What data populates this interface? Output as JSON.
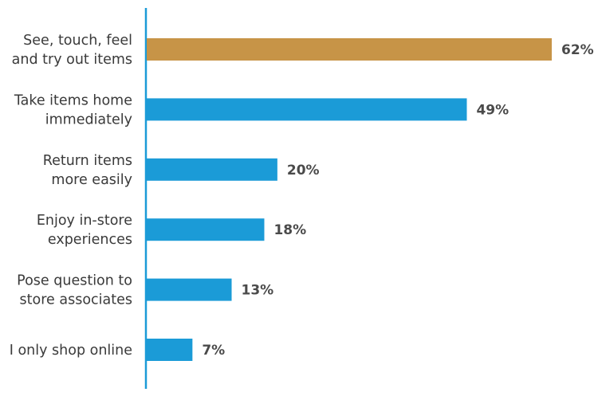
{
  "chart_data": {
    "type": "bar",
    "orientation": "horizontal",
    "categories": [
      [
        "See, touch, feel",
        "and try out items"
      ],
      [
        "Take items home",
        "immediately"
      ],
      [
        "Return items",
        "more easily"
      ],
      [
        "Enjoy in-store",
        "experiences"
      ],
      [
        "Pose question to",
        "store associates"
      ],
      [
        "I only shop online"
      ]
    ],
    "values": [
      62,
      49,
      20,
      18,
      13,
      7
    ],
    "value_labels": [
      "62%",
      "49%",
      "20%",
      "18%",
      "13%",
      "7%"
    ],
    "colors": [
      "#C79447",
      "#1B9BD7",
      "#1B9BD7",
      "#1B9BD7",
      "#1B9BD7",
      "#1B9BD7"
    ],
    "axis_color": "#1B9BD7",
    "xlim": [
      0,
      62
    ],
    "grid": false,
    "title": "",
    "xlabel": "",
    "ylabel": ""
  }
}
